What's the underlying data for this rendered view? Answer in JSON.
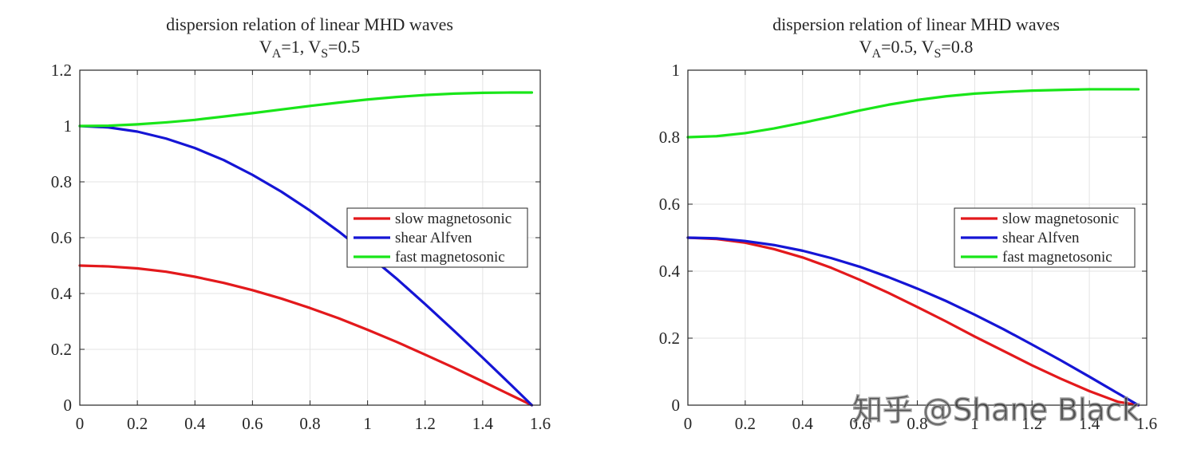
{
  "chart_data": [
    {
      "type": "line",
      "title": "dispersion relation of linear MHD waves",
      "subtitle": {
        "text1": "V",
        "sub1": "A",
        "text2": "=1, V",
        "sub2": "S",
        "text3": "=0.5"
      },
      "xlabel": "",
      "ylabel": "",
      "xlim": [
        0,
        1.6
      ],
      "ylim": [
        0,
        1.2
      ],
      "xticks": [
        "0",
        "0.2",
        "0.4",
        "0.6",
        "0.8",
        "1",
        "1.2",
        "1.4",
        "1.6"
      ],
      "yticks": [
        "0",
        "0.2",
        "0.4",
        "0.6",
        "0.8",
        "1",
        "1.2"
      ],
      "grid": true,
      "legend_position": "right-middle",
      "series": [
        {
          "name": "slow magnetosonic",
          "color": "#e3191c",
          "x": [
            0,
            0.1,
            0.2,
            0.3,
            0.4,
            0.5,
            0.6,
            0.7,
            0.8,
            0.9,
            1.0,
            1.1,
            1.2,
            1.3,
            1.4,
            1.5,
            1.5708
          ],
          "y": [
            0.5,
            0.497,
            0.49,
            0.478,
            0.46,
            0.438,
            0.412,
            0.382,
            0.348,
            0.311,
            0.27,
            0.227,
            0.181,
            0.134,
            0.085,
            0.035,
            0
          ]
        },
        {
          "name": "shear Alfven",
          "color": "#1515d5",
          "x": [
            0,
            0.1,
            0.2,
            0.3,
            0.4,
            0.5,
            0.6,
            0.7,
            0.8,
            0.9,
            1.0,
            1.1,
            1.2,
            1.3,
            1.4,
            1.5,
            1.5708
          ],
          "y": [
            1.0,
            0.995,
            0.98,
            0.955,
            0.921,
            0.878,
            0.825,
            0.765,
            0.697,
            0.622,
            0.54,
            0.454,
            0.362,
            0.267,
            0.17,
            0.071,
            0
          ]
        },
        {
          "name": "fast magnetosonic",
          "color": "#19e619",
          "x": [
            0,
            0.1,
            0.2,
            0.3,
            0.4,
            0.5,
            0.6,
            0.7,
            0.8,
            0.9,
            1.0,
            1.1,
            1.2,
            1.3,
            1.4,
            1.5,
            1.5708
          ],
          "y": [
            1.0,
            1.001,
            1.006,
            1.013,
            1.022,
            1.034,
            1.046,
            1.059,
            1.072,
            1.084,
            1.095,
            1.104,
            1.111,
            1.116,
            1.119,
            1.12,
            1.12
          ]
        }
      ]
    },
    {
      "type": "line",
      "title": "dispersion relation of linear MHD waves",
      "subtitle": {
        "text1": "V",
        "sub1": "A",
        "text2": "=0.5, V",
        "sub2": "S",
        "text3": "=0.8"
      },
      "xlabel": "",
      "ylabel": "",
      "xlim": [
        0,
        1.6
      ],
      "ylim": [
        0,
        1
      ],
      "xticks": [
        "0",
        "0.2",
        "0.4",
        "0.6",
        "0.8",
        "1",
        "1.2",
        "1.4",
        "1.6"
      ],
      "yticks": [
        "0",
        "0.2",
        "0.4",
        "0.6",
        "0.8",
        "1"
      ],
      "grid": true,
      "legend_position": "right-middle",
      "series": [
        {
          "name": "slow magnetosonic",
          "color": "#e3191c",
          "x": [
            0,
            0.1,
            0.2,
            0.3,
            0.4,
            0.5,
            0.6,
            0.7,
            0.8,
            0.9,
            1.0,
            1.1,
            1.2,
            1.3,
            1.4,
            1.5,
            1.5708
          ],
          "y": [
            0.5,
            0.496,
            0.485,
            0.466,
            0.441,
            0.41,
            0.374,
            0.335,
            0.293,
            0.25,
            0.205,
            0.162,
            0.119,
            0.079,
            0.042,
            0.01,
            0
          ]
        },
        {
          "name": "shear Alfven",
          "color": "#1515d5",
          "x": [
            0,
            0.1,
            0.2,
            0.3,
            0.4,
            0.5,
            0.6,
            0.7,
            0.8,
            0.9,
            1.0,
            1.1,
            1.2,
            1.3,
            1.4,
            1.5,
            1.5708
          ],
          "y": [
            0.5,
            0.498,
            0.49,
            0.478,
            0.461,
            0.439,
            0.413,
            0.382,
            0.348,
            0.311,
            0.27,
            0.227,
            0.181,
            0.134,
            0.085,
            0.035,
            0
          ]
        },
        {
          "name": "fast magnetosonic",
          "color": "#19e619",
          "x": [
            0,
            0.1,
            0.2,
            0.3,
            0.4,
            0.5,
            0.6,
            0.7,
            0.8,
            0.9,
            1.0,
            1.1,
            1.2,
            1.3,
            1.4,
            1.5,
            1.5708
          ],
          "y": [
            0.8,
            0.803,
            0.812,
            0.826,
            0.843,
            0.861,
            0.88,
            0.897,
            0.911,
            0.922,
            0.93,
            0.935,
            0.939,
            0.941,
            0.943,
            0.943,
            0.943
          ]
        }
      ]
    }
  ],
  "watermark": "知乎 @Shane Black"
}
